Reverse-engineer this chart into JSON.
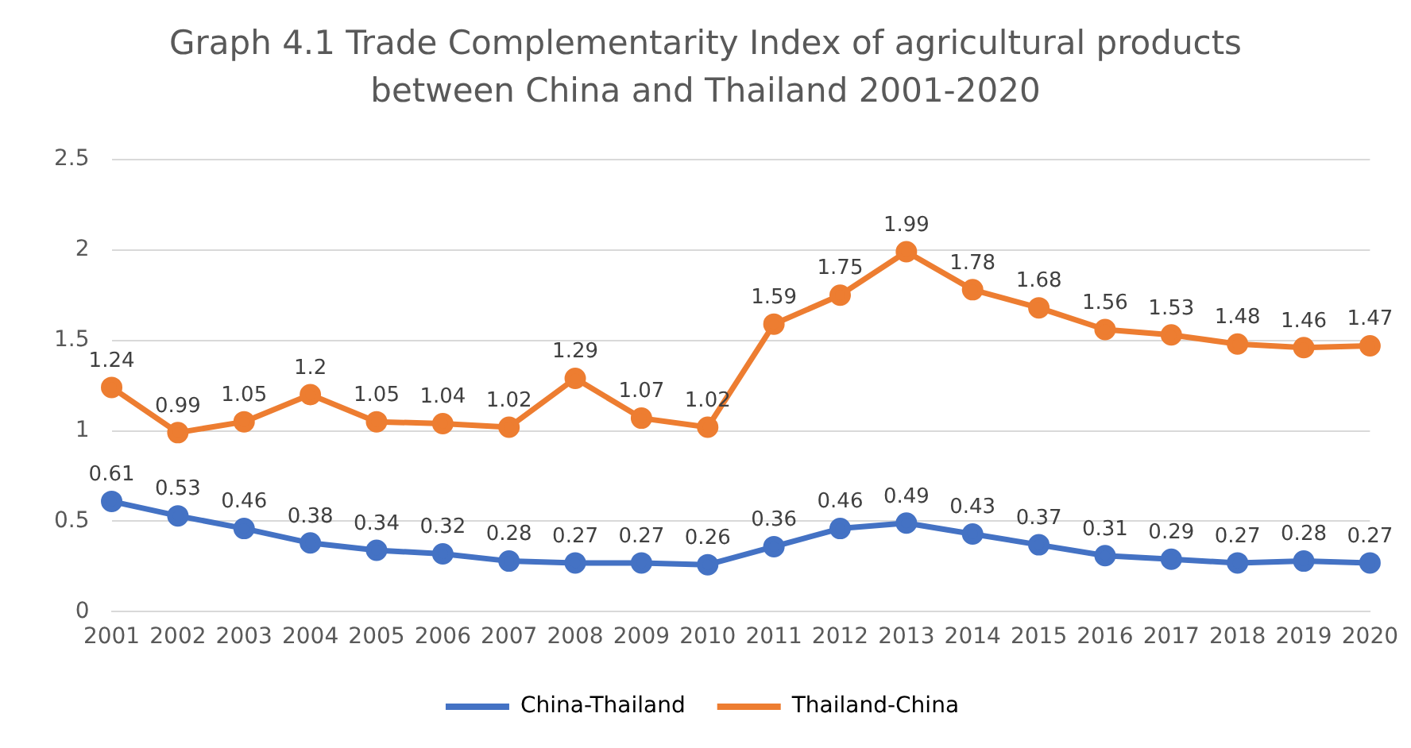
{
  "chart_data": {
    "type": "line",
    "title": "Graph 4.1 Trade Complementarity Index of agricultural products between China and Thailand 2001-2020",
    "categories": [
      "2001",
      "2002",
      "2003",
      "2004",
      "2005",
      "2006",
      "2007",
      "2008",
      "2009",
      "2010",
      "2011",
      "2012",
      "2013",
      "2014",
      "2015",
      "2016",
      "2017",
      "2018",
      "2019",
      "2020"
    ],
    "series": [
      {
        "name": "China-Thailand",
        "color": "#4472c4",
        "values": [
          0.61,
          0.53,
          0.46,
          0.38,
          0.34,
          0.32,
          0.28,
          0.27,
          0.27,
          0.26,
          0.36,
          0.46,
          0.49,
          0.43,
          0.37,
          0.31,
          0.29,
          0.27,
          0.28,
          0.27
        ]
      },
      {
        "name": "Thailand-China",
        "color": "#ed7d31",
        "values": [
          1.24,
          0.99,
          1.05,
          1.2,
          1.05,
          1.04,
          1.02,
          1.29,
          1.07,
          1.02,
          1.59,
          1.75,
          1.99,
          1.78,
          1.68,
          1.56,
          1.53,
          1.48,
          1.46,
          1.47
        ]
      }
    ],
    "ylim": [
      0,
      2.5
    ],
    "yticks": [
      0,
      0.5,
      1,
      1.5,
      2,
      2.5
    ],
    "grid": "y",
    "legend": "bottom",
    "marker": "circle",
    "line_style": "solid",
    "data_labels": true
  }
}
